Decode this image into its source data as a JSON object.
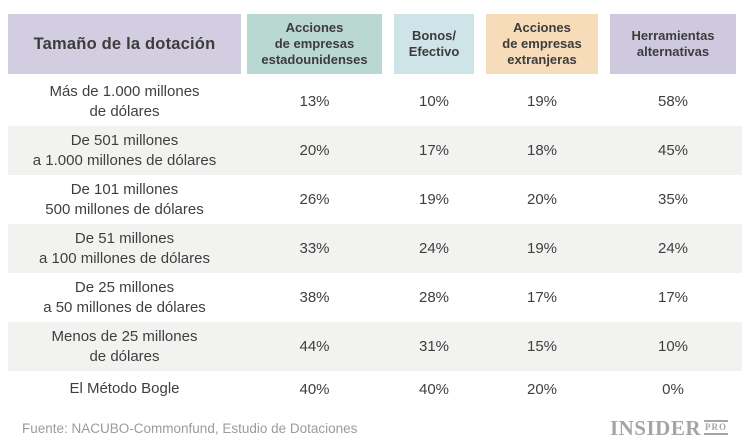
{
  "table": {
    "header": {
      "label_col": "Tamaño de la dotación",
      "columns": [
        {
          "label": "Acciones\nde empresas\nestadounidenses",
          "bg": "#b9d8d2"
        },
        {
          "label": "Bonos/\nEfectivo",
          "bg": "#cfe4e8"
        },
        {
          "label": "Acciones\nde empresas\nextranjeras",
          "bg": "#f7dcba"
        },
        {
          "label": "Herramientas\nalternativas",
          "bg": "#cfc9df"
        }
      ]
    },
    "rows": [
      {
        "label": "Más de 1.000 millones\nde dólares",
        "values": [
          "13%",
          "10%",
          "19%",
          "58%"
        ]
      },
      {
        "label": "De 501 millones\na 1.000 millones de dólares",
        "values": [
          "20%",
          "17%",
          "18%",
          "45%"
        ]
      },
      {
        "label": "De 101 millones\n500 millones de dólares",
        "values": [
          "26%",
          "19%",
          "20%",
          "35%"
        ]
      },
      {
        "label": "De 51 millones\na 100 millones de dólares",
        "values": [
          "33%",
          "24%",
          "19%",
          "24%"
        ]
      },
      {
        "label": "De 25 millones\na 50 millones de dólares",
        "values": [
          "38%",
          "28%",
          "17%",
          "17%"
        ]
      },
      {
        "label": "Menos de 25 millones\nde dólares",
        "values": [
          "44%",
          "31%",
          "15%",
          "10%"
        ]
      },
      {
        "label": "El Método Bogle",
        "values": [
          "40%",
          "40%",
          "20%",
          "0%"
        ]
      }
    ]
  },
  "footer": {
    "source": "Fuente: NACUBO-Commonfund, Estudio de Dotaciones",
    "logo_main": "INSIDER",
    "logo_sub": "PRO"
  },
  "colors": {
    "header_endowment_bg": "#d3cde1",
    "header_us_equities_bg": "#b9d8d2",
    "header_bonds_cash_bg": "#cfe4e8",
    "header_foreign_equities_bg": "#f7dcba",
    "header_alternatives_bg": "#cfc9df",
    "row_stripe_bg": "#f2f2f1",
    "text_dark": "#3f3f3f",
    "footer_text": "#9b9b9b",
    "logo_gray": "#a5a5a5"
  },
  "chart_data": {
    "type": "table",
    "title": "Tamaño de la dotación",
    "categories": [
      "Más de 1.000 millones de dólares",
      "De 501 millones a 1.000 millones de dólares",
      "De 101 millones 500 millones de dólares",
      "De 51 millones a 100 millones de dólares",
      "De 25 millones a 50 millones de dólares",
      "Menos de 25 millones de dólares",
      "El Método Bogle"
    ],
    "series": [
      {
        "name": "Acciones de empresas estadounidenses",
        "values": [
          13,
          20,
          26,
          33,
          38,
          44,
          40
        ]
      },
      {
        "name": "Bonos/Efectivo",
        "values": [
          10,
          17,
          19,
          24,
          28,
          31,
          40
        ]
      },
      {
        "name": "Acciones de empresas extranjeras",
        "values": [
          19,
          18,
          20,
          19,
          17,
          15,
          20
        ]
      },
      {
        "name": "Herramientas alternativas",
        "values": [
          58,
          45,
          35,
          24,
          17,
          10,
          0
        ]
      }
    ],
    "unit": "%",
    "source": "Fuente: NACUBO-Commonfund, Estudio de Dotaciones"
  }
}
